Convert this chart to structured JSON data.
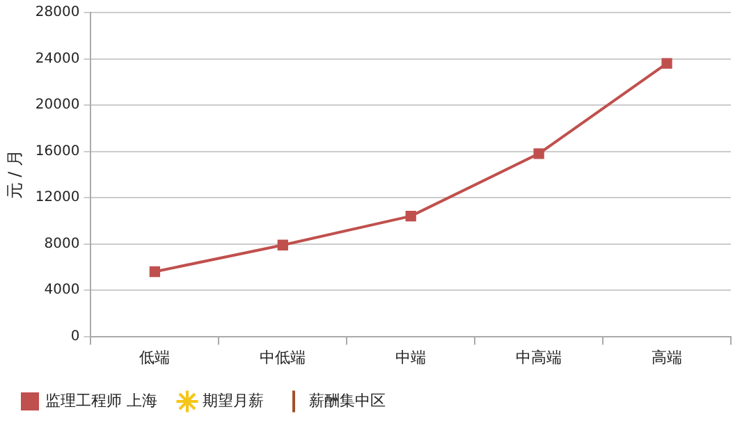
{
  "chart_data": {
    "type": "line",
    "ylabel": "元 / 月",
    "categories": [
      "低端",
      "中低端",
      "中端",
      "中高端",
      "高端"
    ],
    "series": [
      {
        "name": "监理工程师 上海",
        "color": "#c0504d",
        "values": [
          5600,
          7900,
          10400,
          15800,
          23600
        ],
        "marker": "square"
      },
      {
        "name": "期望月薪",
        "color": "#f5c518",
        "marker": "star",
        "values": [
          null,
          null,
          null,
          null,
          null
        ]
      },
      {
        "name": "薪酬集中区",
        "color": "#a0522d",
        "marker": "line",
        "values": [
          null,
          null,
          null,
          null,
          null
        ]
      }
    ],
    "ylim": [
      0,
      28000
    ],
    "yticks": [
      0,
      4000,
      8000,
      12000,
      16000,
      20000,
      24000,
      28000
    ],
    "grid": "y",
    "legend": "bottom left"
  }
}
